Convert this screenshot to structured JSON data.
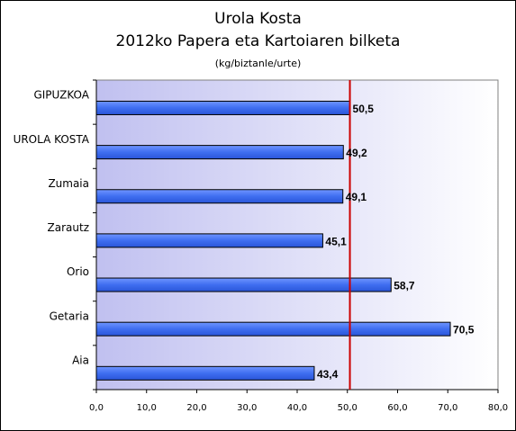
{
  "chart_data": {
    "type": "bar",
    "orientation": "horizontal",
    "title": "Urola Kosta",
    "subtitle": "2012ko Papera eta Kartoiaren bilketa",
    "unit_note": "(kg/biztanle/urte)",
    "categories": [
      "GIPUZKOA",
      "UROLA KOSTA",
      "Zumaia",
      "Zarautz",
      "Orio",
      "Getaria",
      "Aia"
    ],
    "values": [
      50.5,
      49.2,
      49.1,
      45.1,
      58.7,
      70.5,
      43.4
    ],
    "value_labels": [
      "50,5",
      "49,2",
      "49,1",
      "45,1",
      "58,7",
      "70,5",
      "43,4"
    ],
    "xlim": [
      0,
      80
    ],
    "x_ticks": [
      0,
      10,
      20,
      30,
      40,
      50,
      60,
      70,
      80
    ],
    "x_tick_labels": [
      "0,0",
      "10,0",
      "20,0",
      "30,0",
      "40,0",
      "50,0",
      "60,0",
      "70,0",
      "80,0"
    ],
    "reference_line": {
      "value": 50.5,
      "color": "#cc0000"
    },
    "bar_color": "#3f6ef0",
    "grid": false,
    "legend": "none"
  }
}
